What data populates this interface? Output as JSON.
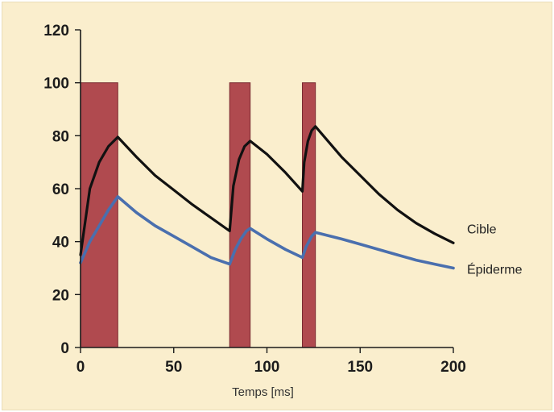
{
  "chart_data": {
    "type": "line",
    "title": "",
    "xlabel": "Temps [ms]",
    "ylabel": "",
    "xlim": [
      0,
      200
    ],
    "ylim": [
      0,
      120
    ],
    "x_ticks": [
      0,
      50,
      100,
      150,
      200
    ],
    "y_ticks": [
      0,
      20,
      40,
      60,
      80,
      100,
      120
    ],
    "grid": false,
    "legend": "none",
    "pulses": [
      {
        "start": 0,
        "end": 20,
        "value": 100
      },
      {
        "start": 80,
        "end": 91,
        "value": 100
      },
      {
        "start": 119,
        "end": 126,
        "value": 100
      }
    ],
    "series": [
      {
        "name": "Cible",
        "color": "#111111",
        "points": [
          [
            0,
            35
          ],
          [
            5,
            60
          ],
          [
            10,
            70
          ],
          [
            15,
            76
          ],
          [
            20,
            79.5
          ],
          [
            30,
            72
          ],
          [
            40,
            65
          ],
          [
            50,
            59.5
          ],
          [
            60,
            54
          ],
          [
            70,
            49
          ],
          [
            80,
            44
          ],
          [
            82,
            61
          ],
          [
            85,
            71
          ],
          [
            88,
            76
          ],
          [
            91,
            78
          ],
          [
            100,
            73
          ],
          [
            110,
            66
          ],
          [
            119,
            59
          ],
          [
            120,
            70
          ],
          [
            122,
            78
          ],
          [
            124,
            82
          ],
          [
            126,
            83.5
          ],
          [
            140,
            72
          ],
          [
            150,
            65
          ],
          [
            160,
            58
          ],
          [
            170,
            52
          ],
          [
            180,
            47
          ],
          [
            190,
            43
          ],
          [
            200,
            39.5
          ]
        ]
      },
      {
        "name": "Épiderme",
        "color": "#4a6fae",
        "points": [
          [
            0,
            32
          ],
          [
            5,
            40
          ],
          [
            10,
            46
          ],
          [
            15,
            52
          ],
          [
            20,
            57
          ],
          [
            30,
            51
          ],
          [
            40,
            46
          ],
          [
            50,
            42
          ],
          [
            60,
            38
          ],
          [
            70,
            34
          ],
          [
            80,
            31.5
          ],
          [
            83,
            37
          ],
          [
            86,
            41
          ],
          [
            89,
            44
          ],
          [
            91,
            45
          ],
          [
            100,
            41
          ],
          [
            110,
            37
          ],
          [
            119,
            34
          ],
          [
            121,
            38
          ],
          [
            124,
            42
          ],
          [
            126,
            43.5
          ],
          [
            140,
            41
          ],
          [
            150,
            39
          ],
          [
            160,
            37
          ],
          [
            170,
            35
          ],
          [
            180,
            33
          ],
          [
            190,
            31.5
          ],
          [
            200,
            30
          ]
        ]
      }
    ],
    "pulse_color": "#b04a4f",
    "pulse_edge": "#7a2a30"
  }
}
